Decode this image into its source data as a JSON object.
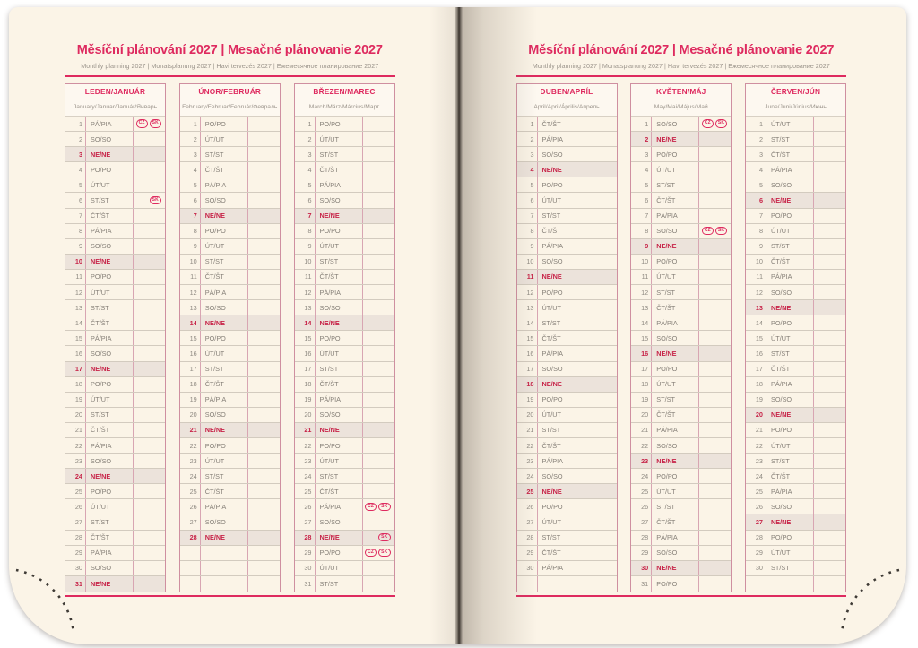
{
  "colors": {
    "accent": "#de2a5f",
    "sunday_red": "#c72448",
    "sunday_bg": "#ece3db",
    "page_bg": "#fbf4e7",
    "header_bg": "#fdf8f0",
    "num_text": "#8f8a82",
    "day_text": "#857f77",
    "subtitle_text": "#9b948b",
    "grid_line": "#d3cbbf",
    "pink_line": "#d8a5b2",
    "table_border": "#cf8fa0",
    "stitch_dot": "#3e3a35"
  },
  "pages": [
    {
      "title": "Měsíční plánování 2027 | Mesačné plánovanie 2027",
      "subtitle": "Monthly planning 2027 | Monatsplanung 2027 | Havi tervezés 2027 | Ежемесячное планирование 2027",
      "months": [
        {
          "name": "LEDEN/JANUÁR",
          "subtitle": "January/Januar/Január/Январь",
          "days": [
            "PÁ/PIA",
            "SO/SO",
            "NE/NE",
            "PO/PO",
            "ÚT/UT",
            "ST/ST",
            "ČT/ŠT",
            "PÁ/PIA",
            "SO/SO",
            "NE/NE",
            "PO/PO",
            "ÚT/UT",
            "ST/ST",
            "ČT/ŠT",
            "PÁ/PIA",
            "SO/SO",
            "NE/NE",
            "PO/PO",
            "ÚT/UT",
            "ST/ST",
            "ČT/ŠT",
            "PÁ/PIA",
            "SO/SO",
            "NE/NE",
            "PO/PO",
            "ÚT/UT",
            "ST/ST",
            "ČT/ŠT",
            "PÁ/PIA",
            "SO/SO",
            "NE/NE"
          ],
          "empty_rows": 0,
          "badges": {
            "1": [
              "CZ",
              "SK"
            ],
            "6": [
              "SK"
            ]
          }
        },
        {
          "name": "ÚNOR/FEBRUÁR",
          "subtitle": "February/Februar/Február/Февраль",
          "days": [
            "PO/PO",
            "ÚT/UT",
            "ST/ST",
            "ČT/ŠT",
            "PÁ/PIA",
            "SO/SO",
            "NE/NE",
            "PO/PO",
            "ÚT/UT",
            "ST/ST",
            "ČT/ŠT",
            "PÁ/PIA",
            "SO/SO",
            "NE/NE",
            "PO/PO",
            "ÚT/UT",
            "ST/ST",
            "ČT/ŠT",
            "PÁ/PIA",
            "SO/SO",
            "NE/NE",
            "PO/PO",
            "ÚT/UT",
            "ST/ST",
            "ČT/ŠT",
            "PÁ/PIA",
            "SO/SO",
            "NE/NE"
          ],
          "empty_rows": 3,
          "badges": {}
        },
        {
          "name": "BŘEZEN/MAREC",
          "subtitle": "March/März/Március/Март",
          "days": [
            "PO/PO",
            "ÚT/UT",
            "ST/ST",
            "ČT/ŠT",
            "PÁ/PIA",
            "SO/SO",
            "NE/NE",
            "PO/PO",
            "ÚT/UT",
            "ST/ST",
            "ČT/ŠT",
            "PÁ/PIA",
            "SO/SO",
            "NE/NE",
            "PO/PO",
            "ÚT/UT",
            "ST/ST",
            "ČT/ŠT",
            "PÁ/PIA",
            "SO/SO",
            "NE/NE",
            "PO/PO",
            "ÚT/UT",
            "ST/ST",
            "ČT/ŠT",
            "PÁ/PIA",
            "SO/SO",
            "NE/NE",
            "PO/PO",
            "ÚT/UT",
            "ST/ST"
          ],
          "empty_rows": 0,
          "badges": {
            "26": [
              "CZ",
              "SK"
            ],
            "28": [
              "SK"
            ],
            "29": [
              "CZ",
              "SK"
            ]
          }
        }
      ]
    },
    {
      "title": "Měsíční plánování 2027 | Mesačné plánovanie 2027",
      "subtitle": "Monthly planning 2027 | Monatsplanung 2027 | Havi tervezés 2027 | Ежемесячное планирование 2027",
      "months": [
        {
          "name": "DUBEN/APRÍL",
          "subtitle": "April/April/Április/Апрель",
          "days": [
            "ČT/ŠT",
            "PÁ/PIA",
            "SO/SO",
            "NE/NE",
            "PO/PO",
            "ÚT/UT",
            "ST/ST",
            "ČT/ŠT",
            "PÁ/PIA",
            "SO/SO",
            "NE/NE",
            "PO/PO",
            "ÚT/UT",
            "ST/ST",
            "ČT/ŠT",
            "PÁ/PIA",
            "SO/SO",
            "NE/NE",
            "PO/PO",
            "ÚT/UT",
            "ST/ST",
            "ČT/ŠT",
            "PÁ/PIA",
            "SO/SO",
            "NE/NE",
            "PO/PO",
            "ÚT/UT",
            "ST/ST",
            "ČT/ŠT",
            "PÁ/PIA"
          ],
          "empty_rows": 1,
          "badges": {}
        },
        {
          "name": "KVĚTEN/MÁJ",
          "subtitle": "May/Mai/Május/Май",
          "days": [
            "SO/SO",
            "NE/NE",
            "PO/PO",
            "ÚT/UT",
            "ST/ST",
            "ČT/ŠT",
            "PÁ/PIA",
            "SO/SO",
            "NE/NE",
            "PO/PO",
            "ÚT/UT",
            "ST/ST",
            "ČT/ŠT",
            "PÁ/PIA",
            "SO/SO",
            "NE/NE",
            "PO/PO",
            "ÚT/UT",
            "ST/ST",
            "ČT/ŠT",
            "PÁ/PIA",
            "SO/SO",
            "NE/NE",
            "PO/PO",
            "ÚT/UT",
            "ST/ST",
            "ČT/ŠT",
            "PÁ/PIA",
            "SO/SO",
            "NE/NE",
            "PO/PO"
          ],
          "empty_rows": 0,
          "badges": {
            "1": [
              "CZ",
              "SK"
            ],
            "8": [
              "CZ",
              "SK"
            ]
          }
        },
        {
          "name": "ČERVEN/JÚN",
          "subtitle": "June/Juni/Június/Июнь",
          "days": [
            "ÚT/UT",
            "ST/ST",
            "ČT/ŠT",
            "PÁ/PIA",
            "SO/SO",
            "NE/NE",
            "PO/PO",
            "ÚT/UT",
            "ST/ST",
            "ČT/ŠT",
            "PÁ/PIA",
            "SO/SO",
            "NE/NE",
            "PO/PO",
            "ÚT/UT",
            "ST/ST",
            "ČT/ŠT",
            "PÁ/PIA",
            "SO/SO",
            "NE/NE",
            "PO/PO",
            "ÚT/UT",
            "ST/ST",
            "ČT/ŠT",
            "PÁ/PIA",
            "SO/SO",
            "NE/NE",
            "PO/PO",
            "ÚT/UT",
            "ST/ST"
          ],
          "empty_rows": 1,
          "badges": {}
        }
      ]
    }
  ],
  "sunday_label": "NE/NE"
}
